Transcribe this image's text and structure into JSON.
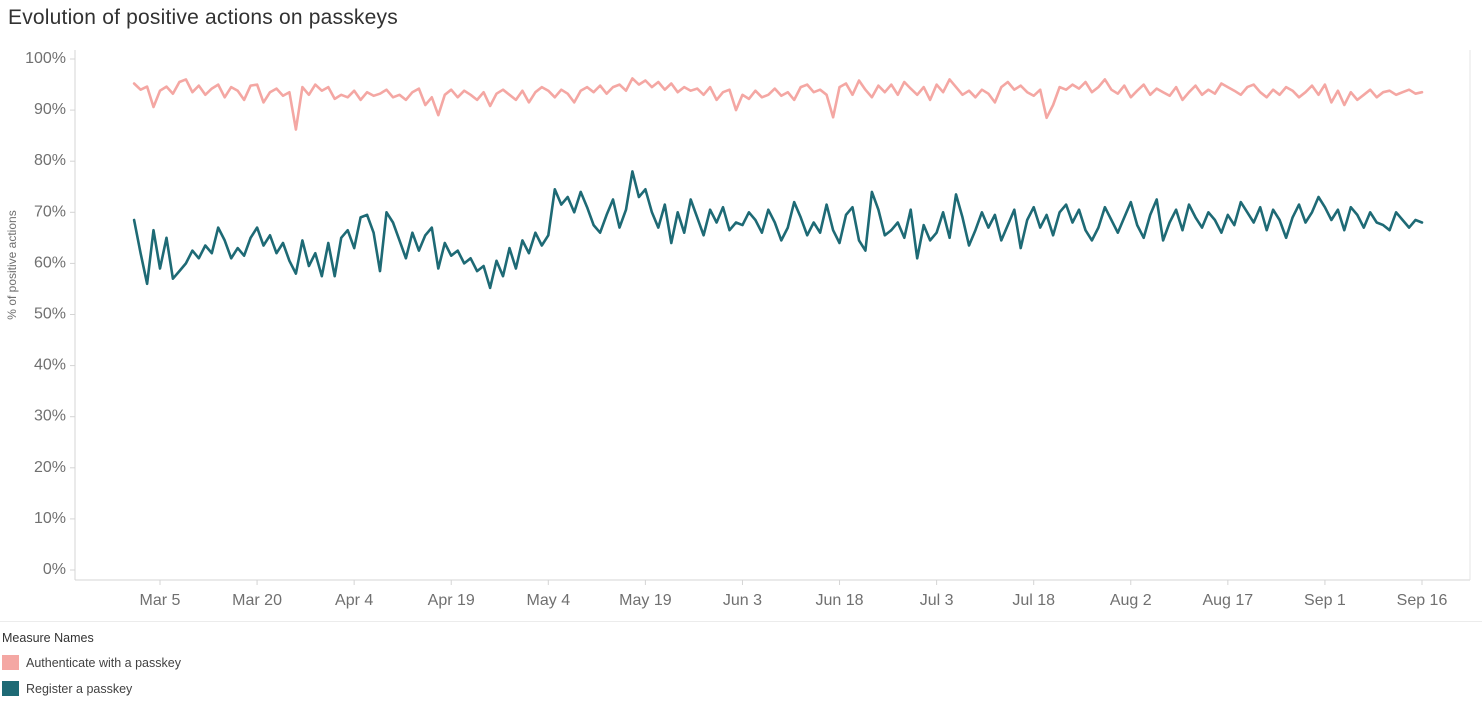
{
  "title": "Evolution of positive actions on passkeys",
  "colors": {
    "authenticate": "#f4a7a3",
    "register": "#1e6a75",
    "axis_line": "#d4d4d4",
    "tick_text": "#707070",
    "title_text": "#323232"
  },
  "legend": {
    "title": "Measure Names",
    "items": [
      {
        "label": "Authenticate with a passkey",
        "color": "#f4a7a3"
      },
      {
        "label": "Register a passkey",
        "color": "#1e6a75"
      }
    ]
  },
  "chart_data": {
    "type": "line",
    "title": "Evolution of positive actions on passkeys",
    "xlabel": "",
    "ylabel": "% of positive actions",
    "ylim": [
      0,
      100
    ],
    "y_tick_values": [
      0,
      10,
      20,
      30,
      40,
      50,
      60,
      70,
      80,
      90,
      100
    ],
    "y_tick_labels": [
      "0%",
      "10%",
      "20%",
      "30%",
      "40%",
      "50%",
      "60%",
      "70%",
      "80%",
      "90%",
      "100%"
    ],
    "grid": false,
    "legend_position": "bottom-left",
    "x_start_label": "Mar 1",
    "x_end_label": "Sep 16",
    "n_points": 200,
    "x_tick_labels": [
      "Mar 5",
      "Mar 20",
      "Apr 4",
      "Apr 19",
      "May 4",
      "May 19",
      "Jun 3",
      "Jun 18",
      "Jul 3",
      "Jul 18",
      "Aug 2",
      "Aug 17",
      "Sep 1",
      "Sep 16"
    ],
    "x_tick_indices": [
      4,
      19,
      34,
      49,
      64,
      79,
      94,
      109,
      124,
      139,
      154,
      169,
      184,
      199
    ],
    "series": [
      {
        "name": "Authenticate with a passkey",
        "color": "#f4a7a3",
        "values": [
          95.2,
          94.0,
          94.6,
          90.6,
          93.8,
          94.6,
          93.2,
          95.5,
          96.0,
          93.5,
          94.8,
          93.0,
          94.2,
          95.0,
          92.5,
          94.5,
          93.8,
          92.0,
          94.8,
          95.0,
          91.5,
          93.5,
          94.2,
          92.8,
          93.5,
          86.2,
          94.5,
          93.0,
          95.0,
          93.8,
          94.5,
          92.2,
          93.0,
          92.5,
          93.8,
          92.0,
          93.5,
          92.8,
          93.2,
          94.0,
          92.5,
          93.0,
          92.0,
          93.5,
          94.2,
          91.0,
          92.5,
          89.0,
          93.0,
          94.0,
          92.5,
          93.8,
          93.0,
          92.0,
          93.5,
          90.8,
          93.2,
          94.0,
          93.0,
          92.0,
          93.8,
          91.5,
          93.5,
          94.5,
          93.8,
          92.5,
          94.0,
          93.2,
          91.5,
          93.8,
          94.5,
          93.5,
          94.8,
          93.2,
          94.5,
          95.0,
          93.8,
          96.2,
          95.0,
          95.8,
          94.5,
          95.5,
          94.0,
          95.2,
          93.5,
          94.5,
          93.8,
          94.2,
          93.0,
          94.5,
          92.0,
          93.5,
          94.0,
          90.0,
          93.0,
          92.2,
          93.8,
          92.5,
          93.0,
          94.2,
          92.8,
          93.5,
          92.0,
          94.5,
          95.0,
          93.5,
          94.0,
          93.0,
          88.6,
          94.5,
          95.2,
          93.0,
          95.8,
          94.0,
          92.5,
          94.8,
          93.5,
          95.0,
          93.0,
          95.5,
          94.2,
          93.0,
          94.5,
          92.0,
          95.0,
          93.5,
          96.0,
          94.5,
          93.0,
          93.8,
          92.5,
          94.0,
          93.2,
          91.5,
          94.5,
          95.5,
          94.0,
          94.8,
          93.5,
          92.8,
          94.0,
          88.5,
          91.0,
          94.5,
          94.0,
          95.0,
          94.2,
          95.5,
          93.5,
          94.5,
          96.0,
          94.0,
          93.2,
          94.8,
          92.5,
          93.8,
          95.0,
          93.0,
          94.2,
          93.5,
          92.8,
          94.5,
          92.0,
          93.5,
          94.8,
          93.0,
          94.0,
          93.2,
          95.2,
          94.5,
          93.8,
          93.0,
          94.5,
          95.0,
          93.5,
          92.5,
          94.0,
          93.0,
          94.5,
          93.8,
          92.5,
          93.5,
          94.8,
          93.0,
          95.0,
          91.5,
          93.8,
          91.0,
          93.5,
          92.0,
          93.0,
          94.0,
          92.5,
          93.5,
          93.8,
          93.0,
          93.5,
          94.0,
          93.2,
          93.5
        ]
      },
      {
        "name": "Register a passkey",
        "color": "#1e6a75",
        "values": [
          68.5,
          62.0,
          56.0,
          66.5,
          59.0,
          65.0,
          57.0,
          58.5,
          60.0,
          62.5,
          61.0,
          63.5,
          62.0,
          67.0,
          64.5,
          61.0,
          63.0,
          61.5,
          65.0,
          67.0,
          63.5,
          65.5,
          62.0,
          64.0,
          60.5,
          58.0,
          64.5,
          59.5,
          62.0,
          57.5,
          64.0,
          57.5,
          65.0,
          66.5,
          63.0,
          69.0,
          69.5,
          66.0,
          58.5,
          70.0,
          68.0,
          64.5,
          61.0,
          66.0,
          62.5,
          65.5,
          67.0,
          59.0,
          64.0,
          61.5,
          62.5,
          60.0,
          61.0,
          58.5,
          59.5,
          55.2,
          60.5,
          57.5,
          63.0,
          59.0,
          64.5,
          62.0,
          66.0,
          63.5,
          65.5,
          74.5,
          71.5,
          73.0,
          70.0,
          74.0,
          71.0,
          67.5,
          66.0,
          69.5,
          72.5,
          67.0,
          70.5,
          78.0,
          73.0,
          74.5,
          70.0,
          67.0,
          71.5,
          64.0,
          70.0,
          66.0,
          72.5,
          69.0,
          65.5,
          70.5,
          68.0,
          71.0,
          66.5,
          68.0,
          67.5,
          70.0,
          68.5,
          66.0,
          70.5,
          68.0,
          64.5,
          67.0,
          72.0,
          69.0,
          65.5,
          68.0,
          66.0,
          71.5,
          66.5,
          64.0,
          69.5,
          71.0,
          64.5,
          62.5,
          74.0,
          70.5,
          65.5,
          66.5,
          68.0,
          65.0,
          70.5,
          61.0,
          67.5,
          64.5,
          66.0,
          70.0,
          65.0,
          73.5,
          69.0,
          63.5,
          66.5,
          70.0,
          67.0,
          69.5,
          64.5,
          67.5,
          70.5,
          63.0,
          68.5,
          71.0,
          67.0,
          69.5,
          65.5,
          70.0,
          71.5,
          68.0,
          70.5,
          66.5,
          64.5,
          67.0,
          71.0,
          68.5,
          66.0,
          69.0,
          72.0,
          67.5,
          65.0,
          69.5,
          72.5,
          64.5,
          68.0,
          70.5,
          66.5,
          71.5,
          69.0,
          67.0,
          70.0,
          68.5,
          66.0,
          69.5,
          67.5,
          72.0,
          70.0,
          68.0,
          71.0,
          66.5,
          70.5,
          68.5,
          65.0,
          69.0,
          71.5,
          68.0,
          70.0,
          73.0,
          71.0,
          68.5,
          70.5,
          66.5,
          71.0,
          69.5,
          67.0,
          70.0,
          68.0,
          67.5,
          66.5,
          70.0,
          68.5,
          67.0,
          68.5,
          68.0
        ]
      }
    ]
  }
}
